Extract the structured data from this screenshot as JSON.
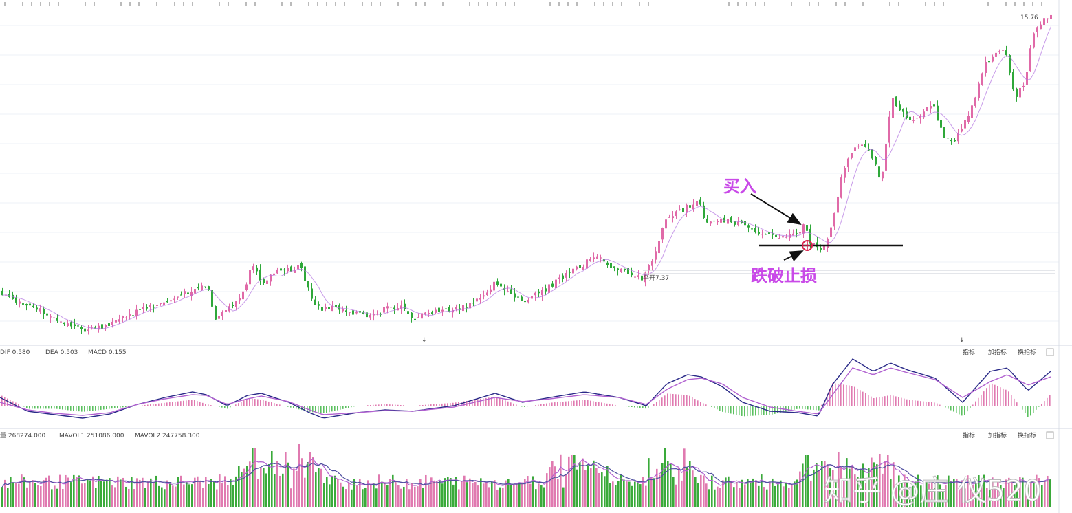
{
  "chart_data": [
    {
      "type": "candlestick",
      "panel": "price",
      "high_label": "15.76",
      "flat_label": "平开7.37",
      "support_level_note": "horizontal stop-loss line",
      "colors": {
        "up": "#e06aa8",
        "down": "#2fa83a",
        "ma": "#b070e0",
        "grid": "#eef2f8"
      },
      "close_path": [
        [
          0,
          425
        ],
        [
          20,
          440
        ],
        [
          40,
          447
        ],
        [
          60,
          452
        ],
        [
          80,
          462
        ],
        [
          100,
          472
        ],
        [
          120,
          482
        ],
        [
          140,
          478
        ],
        [
          160,
          470
        ],
        [
          180,
          462
        ],
        [
          200,
          452
        ],
        [
          220,
          446
        ],
        [
          240,
          440
        ],
        [
          260,
          430
        ],
        [
          280,
          420
        ],
        [
          300,
          415
        ],
        [
          312,
          468
        ],
        [
          330,
          448
        ],
        [
          350,
          432
        ],
        [
          365,
          388
        ],
        [
          380,
          410
        ],
        [
          395,
          398
        ],
        [
          410,
          392
        ],
        [
          425,
          392
        ],
        [
          435,
          388
        ],
        [
          450,
          430
        ],
        [
          465,
          452
        ],
        [
          480,
          446
        ],
        [
          500,
          450
        ],
        [
          520,
          456
        ],
        [
          540,
          462
        ],
        [
          560,
          448
        ],
        [
          580,
          446
        ],
        [
          600,
          462
        ],
        [
          620,
          456
        ],
        [
          640,
          452
        ],
        [
          660,
          450
        ],
        [
          680,
          445
        ],
        [
          700,
          430
        ],
        [
          720,
          410
        ],
        [
          740,
          430
        ],
        [
          760,
          438
        ],
        [
          780,
          428
        ],
        [
          800,
          415
        ],
        [
          820,
          400
        ],
        [
          840,
          390
        ],
        [
          855,
          378
        ],
        [
          870,
          375
        ],
        [
          885,
          385
        ],
        [
          900,
          392
        ],
        [
          920,
          400
        ],
        [
          935,
          405
        ],
        [
          950,
          370
        ],
        [
          965,
          320
        ],
        [
          980,
          312
        ],
        [
          1000,
          300
        ],
        [
          1015,
          295
        ],
        [
          1025,
          322
        ],
        [
          1040,
          318
        ],
        [
          1060,
          322
        ],
        [
          1080,
          328
        ],
        [
          1100,
          335
        ],
        [
          1120,
          345
        ],
        [
          1140,
          343
        ],
        [
          1160,
          338
        ],
        [
          1168,
          322
        ],
        [
          1176,
          352
        ],
        [
          1190,
          365
        ],
        [
          1200,
          350
        ],
        [
          1210,
          325
        ],
        [
          1220,
          265
        ],
        [
          1235,
          225
        ],
        [
          1250,
          210
        ],
        [
          1265,
          225
        ],
        [
          1280,
          262
        ],
        [
          1295,
          145
        ],
        [
          1310,
          160
        ],
        [
          1325,
          180
        ],
        [
          1340,
          165
        ],
        [
          1355,
          152
        ],
        [
          1370,
          195
        ],
        [
          1385,
          210
        ],
        [
          1400,
          180
        ],
        [
          1415,
          150
        ],
        [
          1430,
          95
        ],
        [
          1445,
          80
        ],
        [
          1460,
          70
        ],
        [
          1475,
          145
        ],
        [
          1490,
          115
        ],
        [
          1500,
          50
        ],
        [
          1515,
          30
        ],
        [
          1525,
          25
        ]
      ]
    },
    {
      "type": "line",
      "panel": "MACD",
      "title": "DIF 0.580",
      "legend": [
        "DEA 0.503",
        "MACD 0.155"
      ],
      "buttons": [
        "指标",
        "加指标",
        "换指标"
      ],
      "dif_path": [
        [
          0,
          578
        ],
        [
          40,
          598
        ],
        [
          80,
          603
        ],
        [
          120,
          608
        ],
        [
          160,
          602
        ],
        [
          200,
          588
        ],
        [
          240,
          578
        ],
        [
          280,
          570
        ],
        [
          300,
          574
        ],
        [
          330,
          590
        ],
        [
          360,
          575
        ],
        [
          380,
          572
        ],
        [
          420,
          585
        ],
        [
          450,
          600
        ],
        [
          470,
          608
        ],
        [
          520,
          600
        ],
        [
          560,
          596
        ],
        [
          600,
          598
        ],
        [
          660,
          590
        ],
        [
          720,
          572
        ],
        [
          760,
          585
        ],
        [
          800,
          578
        ],
        [
          850,
          570
        ],
        [
          900,
          578
        ],
        [
          940,
          590
        ],
        [
          970,
          558
        ],
        [
          1000,
          545
        ],
        [
          1020,
          548
        ],
        [
          1050,
          562
        ],
        [
          1080,
          585
        ],
        [
          1120,
          598
        ],
        [
          1160,
          600
        ],
        [
          1190,
          605
        ],
        [
          1210,
          560
        ],
        [
          1240,
          522
        ],
        [
          1270,
          540
        ],
        [
          1295,
          528
        ],
        [
          1320,
          538
        ],
        [
          1360,
          550
        ],
        [
          1400,
          585
        ],
        [
          1440,
          540
        ],
        [
          1465,
          535
        ],
        [
          1495,
          568
        ],
        [
          1528,
          540
        ]
      ],
      "dea_path": [
        [
          0,
          585
        ],
        [
          40,
          596
        ],
        [
          80,
          601
        ],
        [
          120,
          604
        ],
        [
          160,
          600
        ],
        [
          200,
          588
        ],
        [
          240,
          580
        ],
        [
          280,
          574
        ],
        [
          300,
          575
        ],
        [
          330,
          588
        ],
        [
          360,
          580
        ],
        [
          380,
          576
        ],
        [
          420,
          584
        ],
        [
          450,
          596
        ],
        [
          470,
          603
        ],
        [
          520,
          600
        ],
        [
          560,
          597
        ],
        [
          600,
          598
        ],
        [
          660,
          592
        ],
        [
          720,
          578
        ],
        [
          760,
          584
        ],
        [
          800,
          580
        ],
        [
          850,
          574
        ],
        [
          900,
          578
        ],
        [
          940,
          588
        ],
        [
          970,
          566
        ],
        [
          1000,
          552
        ],
        [
          1020,
          550
        ],
        [
          1050,
          558
        ],
        [
          1080,
          578
        ],
        [
          1120,
          592
        ],
        [
          1160,
          598
        ],
        [
          1190,
          602
        ],
        [
          1210,
          575
        ],
        [
          1240,
          535
        ],
        [
          1270,
          545
        ],
        [
          1295,
          535
        ],
        [
          1320,
          542
        ],
        [
          1360,
          552
        ],
        [
          1400,
          578
        ],
        [
          1440,
          555
        ],
        [
          1465,
          545
        ],
        [
          1495,
          560
        ],
        [
          1528,
          548
        ]
      ]
    },
    {
      "type": "bar",
      "panel": "volume",
      "title": "量 268274.000",
      "legend": [
        "MAVOL1 251086.000",
        "MAVOL2 247758.300"
      ],
      "buttons": [
        "指标",
        "加指标",
        "换指标"
      ],
      "peaks": [
        [
          368,
          652
        ],
        [
          380,
          680
        ],
        [
          434,
          645
        ],
        [
          445,
          672
        ],
        [
          832,
          662
        ],
        [
          965,
          652
        ],
        [
          1172,
          662
        ],
        [
          1278,
          660
        ],
        [
          1290,
          662
        ]
      ]
    }
  ],
  "annotations": {
    "buy_label": "买入",
    "stop_label": "跌破止损",
    "watermark": "知乎 @庄 仪520"
  }
}
